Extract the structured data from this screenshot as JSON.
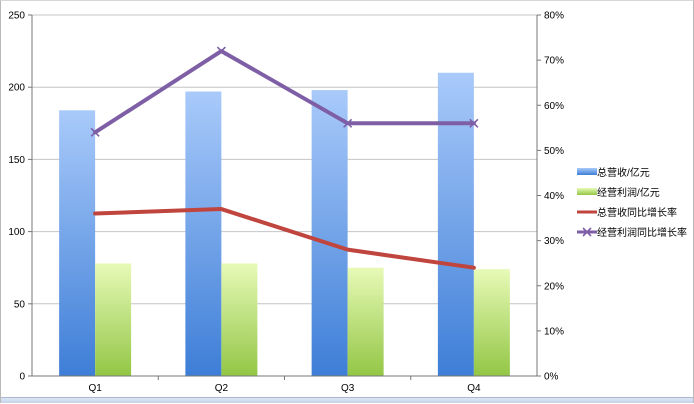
{
  "chart_data": {
    "type": "bar",
    "categories": [
      "Q1",
      "Q2",
      "Q3",
      "Q4"
    ],
    "y_left": {
      "lim": [
        0,
        250
      ],
      "ticks": [
        0,
        50,
        100,
        150,
        200,
        250
      ]
    },
    "y_right": {
      "lim": [
        0,
        80
      ],
      "ticks": [
        "0%",
        "10%",
        "20%",
        "30%",
        "40%",
        "50%",
        "60%",
        "70%",
        "80%"
      ]
    },
    "series": [
      {
        "name": "总营收/亿元",
        "kind": "bar",
        "axis": "left",
        "values": [
          184,
          197,
          198,
          210
        ],
        "color": "#5b93dc"
      },
      {
        "name": "经营利润/亿元",
        "kind": "bar",
        "axis": "left",
        "values": [
          78,
          78,
          75,
          74
        ],
        "color": "#b7de6c"
      },
      {
        "name": "总营收同比增长率",
        "kind": "line",
        "axis": "right",
        "values": [
          36,
          37,
          28,
          24
        ],
        "color": "#c0453e"
      },
      {
        "name": "经营利润同比增长率",
        "kind": "line",
        "axis": "right",
        "values": [
          54,
          72,
          56,
          56
        ],
        "color": "#7e5fa6",
        "marker": "x"
      }
    ],
    "grid": true,
    "legend": "right"
  }
}
